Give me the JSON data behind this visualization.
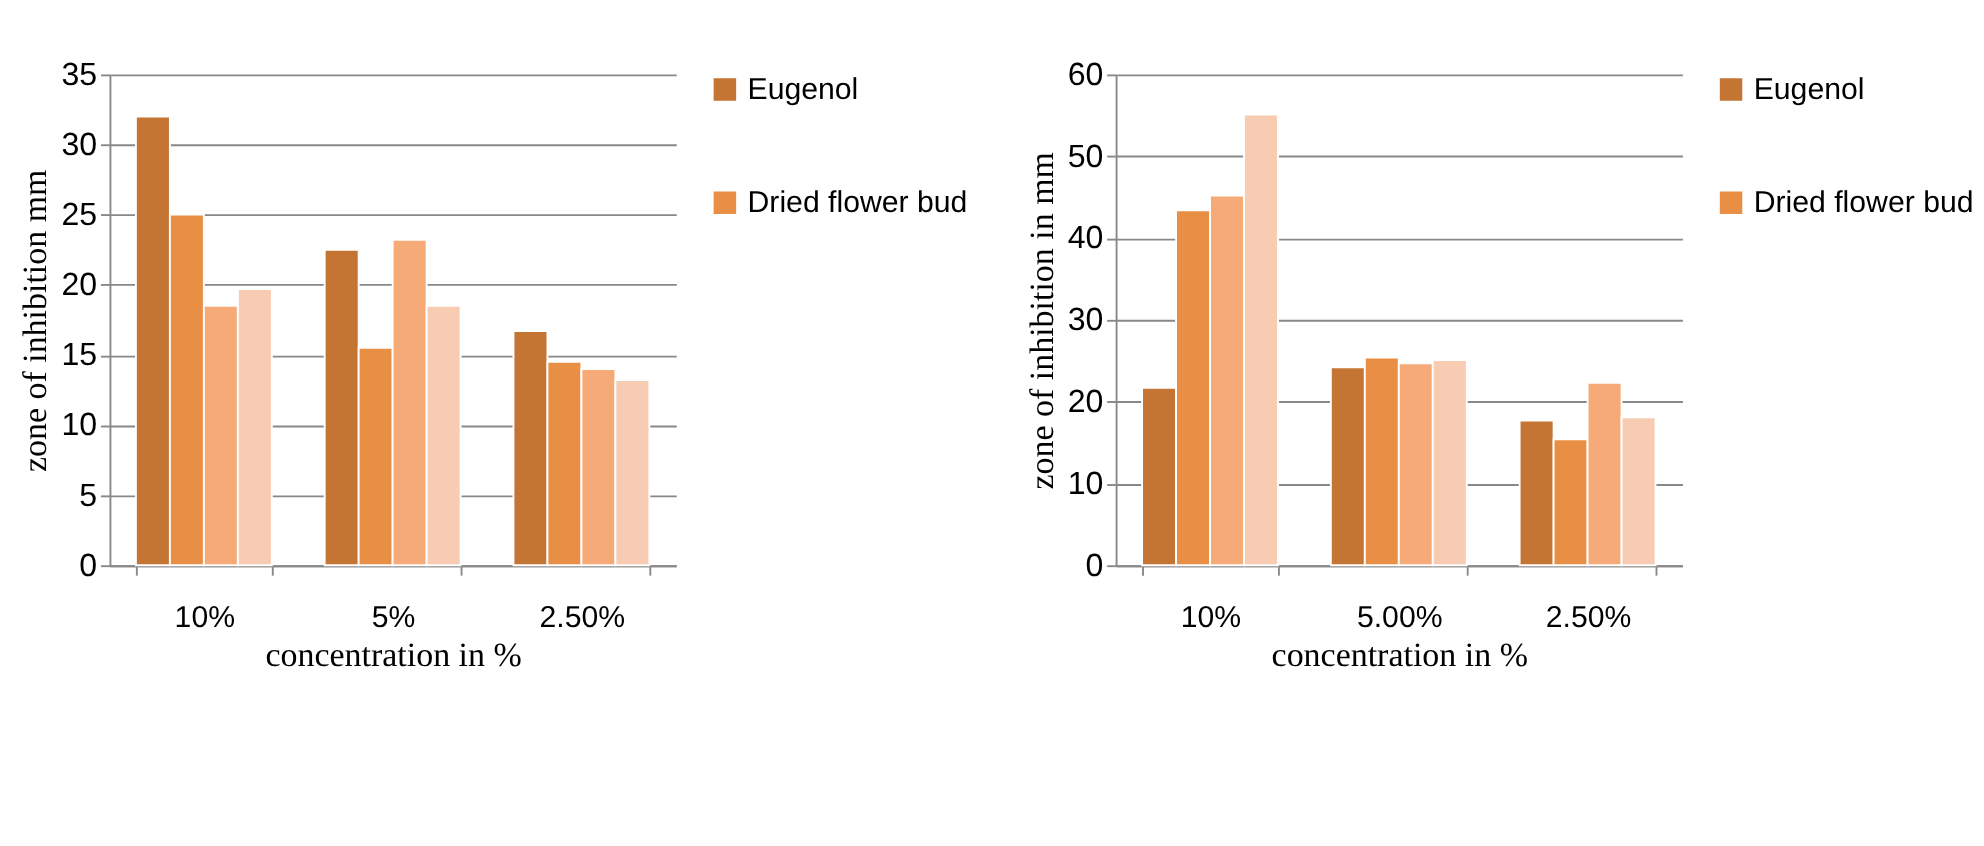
{
  "chart_data": [
    {
      "type": "bar",
      "categories": [
        "10%",
        "5%",
        "2.50%"
      ],
      "xlabel": "concentration in %",
      "ylabel": "zone of inhibition mm",
      "ylim": [
        0,
        35
      ],
      "yticks": [
        0,
        5,
        10,
        15,
        20,
        25,
        30,
        35
      ],
      "grid": "y",
      "legend": "right",
      "series": [
        {
          "name": "Eugenol",
          "color": "#c47533",
          "values": [
            32,
            22.5,
            16.7
          ]
        },
        {
          "name": "Dried flower bud",
          "color": "#e88f45",
          "values": [
            25,
            15.5,
            14.5
          ]
        },
        {
          "color": "#f5aa78",
          "values": [
            18.5,
            23.2,
            14
          ]
        },
        {
          "color": "#f8cbb3",
          "values": [
            19.7,
            18.5,
            13.2
          ]
        }
      ]
    },
    {
      "type": "bar",
      "categories": [
        "10%",
        "5.00%",
        "2.50%"
      ],
      "xlabel": "concentration in %",
      "ylabel": "zone of inhibition in mm",
      "ylim": [
        0,
        60
      ],
      "yticks": [
        0,
        10,
        20,
        30,
        40,
        50,
        60
      ],
      "grid": "y",
      "legend": "right",
      "series": [
        {
          "name": "Eugenol",
          "color": "#c47533",
          "values": [
            21.7,
            24.2,
            17.7
          ]
        },
        {
          "name": "Dried flower bud",
          "color": "#e88f45",
          "values": [
            43.4,
            25.4,
            15.4
          ]
        },
        {
          "color": "#f5aa78",
          "values": [
            45.2,
            24.7,
            22.3
          ]
        },
        {
          "color": "#f8cbb3",
          "values": [
            55.1,
            25.1,
            18.1
          ]
        }
      ]
    }
  ]
}
